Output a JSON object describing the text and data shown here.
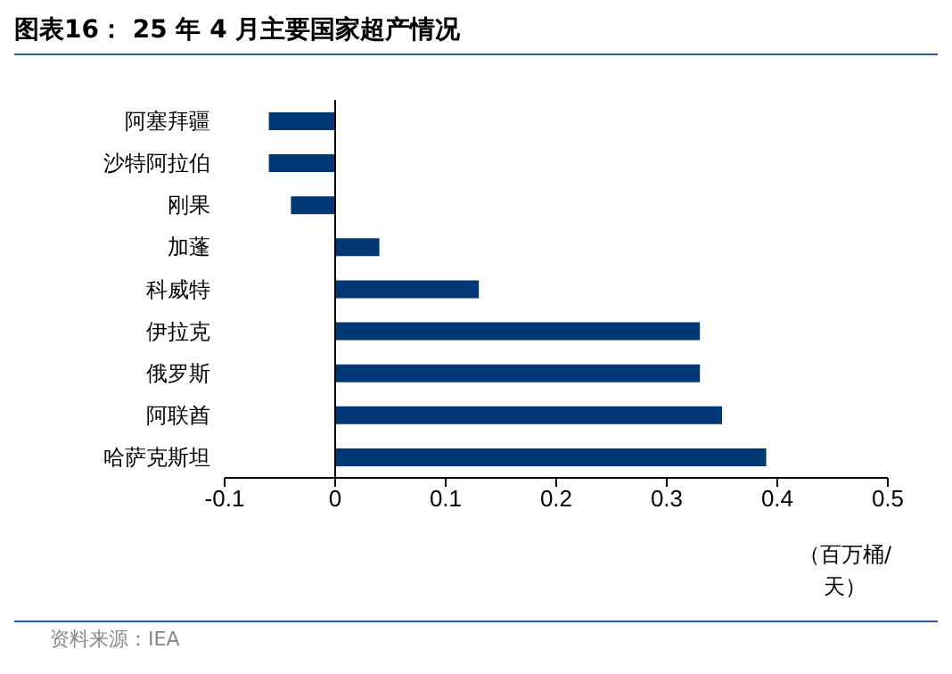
{
  "chart_data": {
    "type": "bar",
    "orientation": "horizontal",
    "title": "图表16： 25 年 4 月主要国家超产情况",
    "categories": [
      "阿塞拜疆",
      "沙特阿拉伯",
      "刚果",
      "加蓬",
      "科威特",
      "伊拉克",
      "俄罗斯",
      "阿联酋",
      "哈萨克斯坦"
    ],
    "values": [
      -0.06,
      -0.06,
      -0.04,
      0.04,
      0.13,
      0.33,
      0.33,
      0.35,
      0.39
    ],
    "color": "#003775",
    "xlim": [
      -0.1,
      0.5
    ],
    "xticks": [
      -0.1,
      0,
      0.1,
      0.2,
      0.3,
      0.4,
      0.5
    ],
    "xlabel": "（百万桶/天）",
    "annotations": [
      "资料来源：IEA"
    ],
    "ref_lines": [
      {
        "axis": "x",
        "value": 0,
        "color": "#000000"
      }
    ],
    "legend": false
  }
}
